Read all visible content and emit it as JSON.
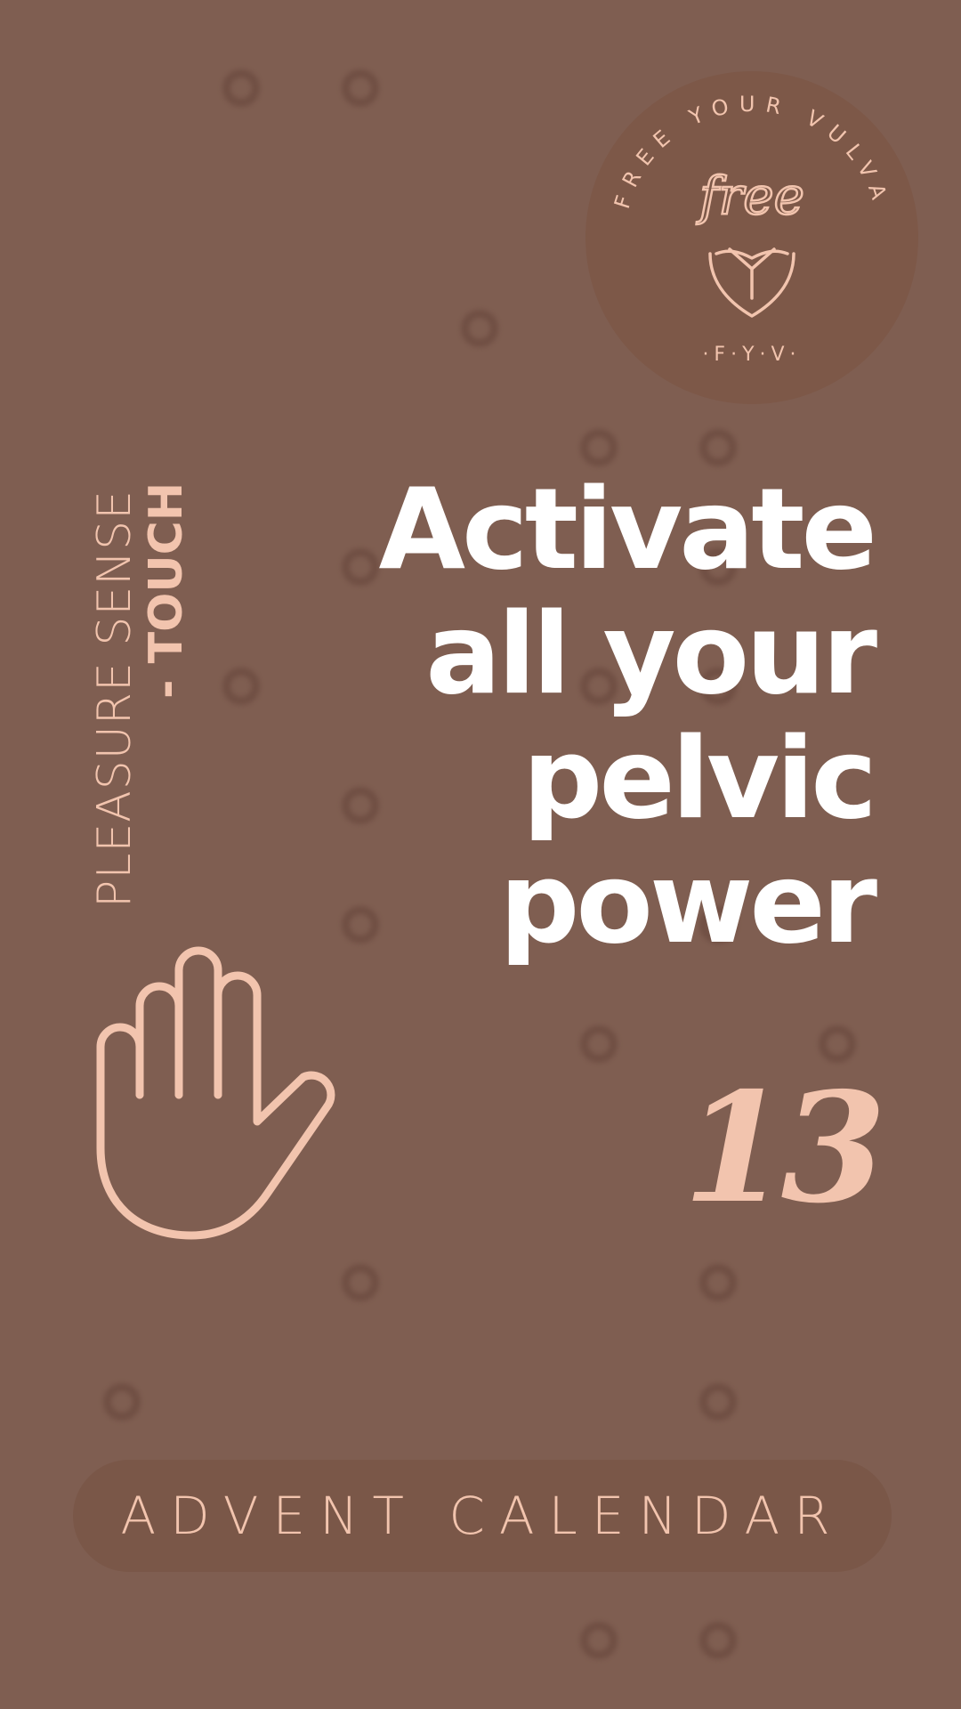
{
  "page": {
    "background": "#7f5e51",
    "accent": "#f2c4ae",
    "headline_color": "#ffffff"
  },
  "badge": {
    "ring_text": "FREE YOUR VULVA",
    "script_text": "free",
    "initials": "·F·Y·V·",
    "icon": "vulva-logo-icon"
  },
  "side_label": {
    "line1": "PLEASURE SENSE",
    "line2": "- TOUCH"
  },
  "headline": {
    "line1": "Activate",
    "line2": "all your",
    "line3": "pelvic",
    "line4": "power"
  },
  "hand_icon": "open-hand-icon",
  "day_number": "13",
  "footer": {
    "label": "ADVENT CALENDAR"
  }
}
